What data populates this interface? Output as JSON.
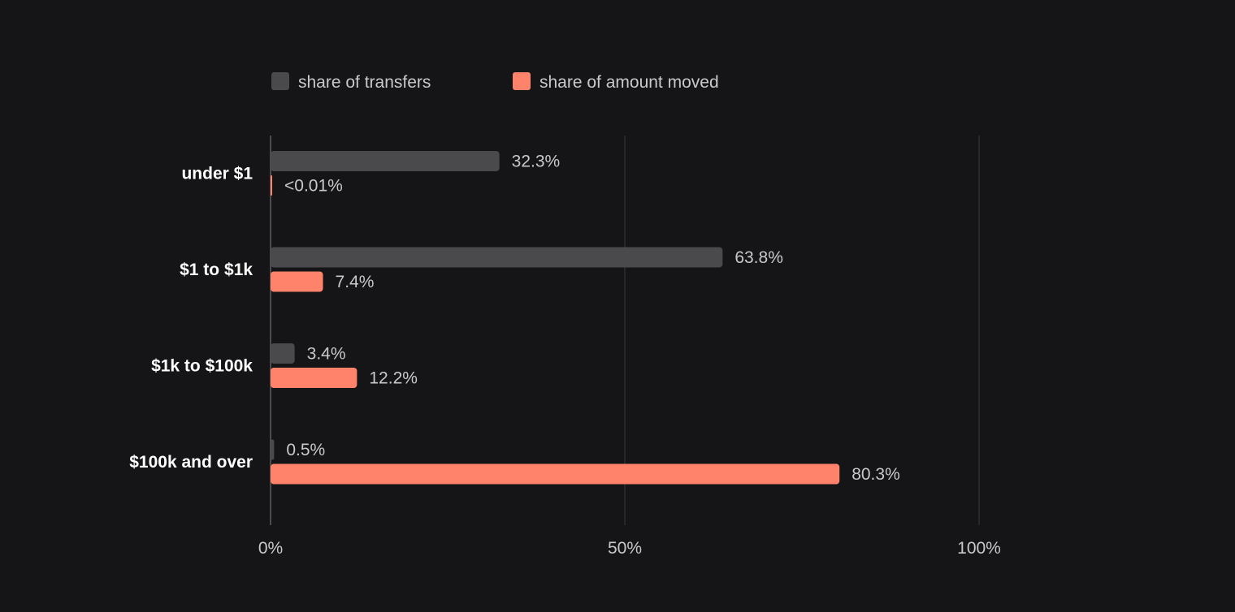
{
  "chart_data": {
    "type": "bar",
    "orientation": "horizontal",
    "categories": [
      "under $1",
      "$1 to $1k",
      "$1k to $100k",
      "$100k and over"
    ],
    "series": [
      {
        "name": "share of transfers",
        "color": "#4a494c",
        "values": [
          32.3,
          63.8,
          3.4,
          0.5
        ],
        "labels": [
          "32.3%",
          "63.8%",
          "3.4%",
          "0.5%"
        ]
      },
      {
        "name": "share of amount moved",
        "color": "#ff836a",
        "values": [
          0.005,
          7.4,
          12.2,
          80.3
        ],
        "labels": [
          "<0.01%",
          "7.4%",
          "12.2%",
          "80.3%"
        ]
      }
    ],
    "x_ticks": [
      {
        "value": 0,
        "label": "0%"
      },
      {
        "value": 50,
        "label": "50%"
      },
      {
        "value": 100,
        "label": "100%"
      }
    ],
    "xlim": [
      0,
      100
    ],
    "grid": true,
    "legend_position": "top-left"
  }
}
